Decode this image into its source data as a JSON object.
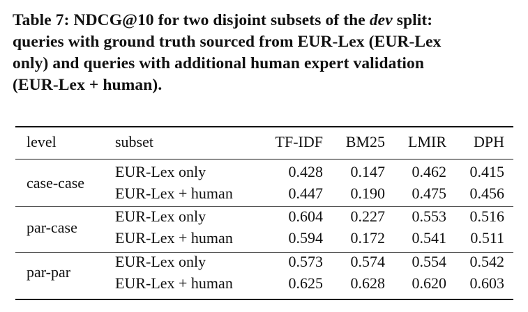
{
  "caption": {
    "line1_prefix": "Table 7: NDCG@10 for two disjoint subsets of the ",
    "line1_italic": "dev",
    "line1_suffix": " split:",
    "line2": "queries with ground truth sourced from EUR-Lex (EUR-Lex",
    "line3": "only) and queries with additional human expert validation",
    "line4": "(EUR-Lex + human)."
  },
  "table": {
    "headers": [
      "level",
      "subset",
      "TF-IDF",
      "BM25",
      "LMIR",
      "DPH"
    ],
    "groups": [
      {
        "level": "case-case",
        "rows": [
          {
            "subset": "EUR-Lex only",
            "values": [
              "0.428",
              "0.147",
              "0.462",
              "0.415"
            ]
          },
          {
            "subset": "EUR-Lex + human",
            "values": [
              "0.447",
              "0.190",
              "0.475",
              "0.456"
            ]
          }
        ]
      },
      {
        "level": "par-case",
        "rows": [
          {
            "subset": "EUR-Lex only",
            "values": [
              "0.604",
              "0.227",
              "0.553",
              "0.516"
            ]
          },
          {
            "subset": "EUR-Lex + human",
            "values": [
              "0.594",
              "0.172",
              "0.541",
              "0.511"
            ]
          }
        ]
      },
      {
        "level": "par-par",
        "rows": [
          {
            "subset": "EUR-Lex only",
            "values": [
              "0.573",
              "0.574",
              "0.554",
              "0.542"
            ]
          },
          {
            "subset": "EUR-Lex + human",
            "values": [
              "0.625",
              "0.628",
              "0.620",
              "0.603"
            ]
          }
        ]
      }
    ]
  }
}
